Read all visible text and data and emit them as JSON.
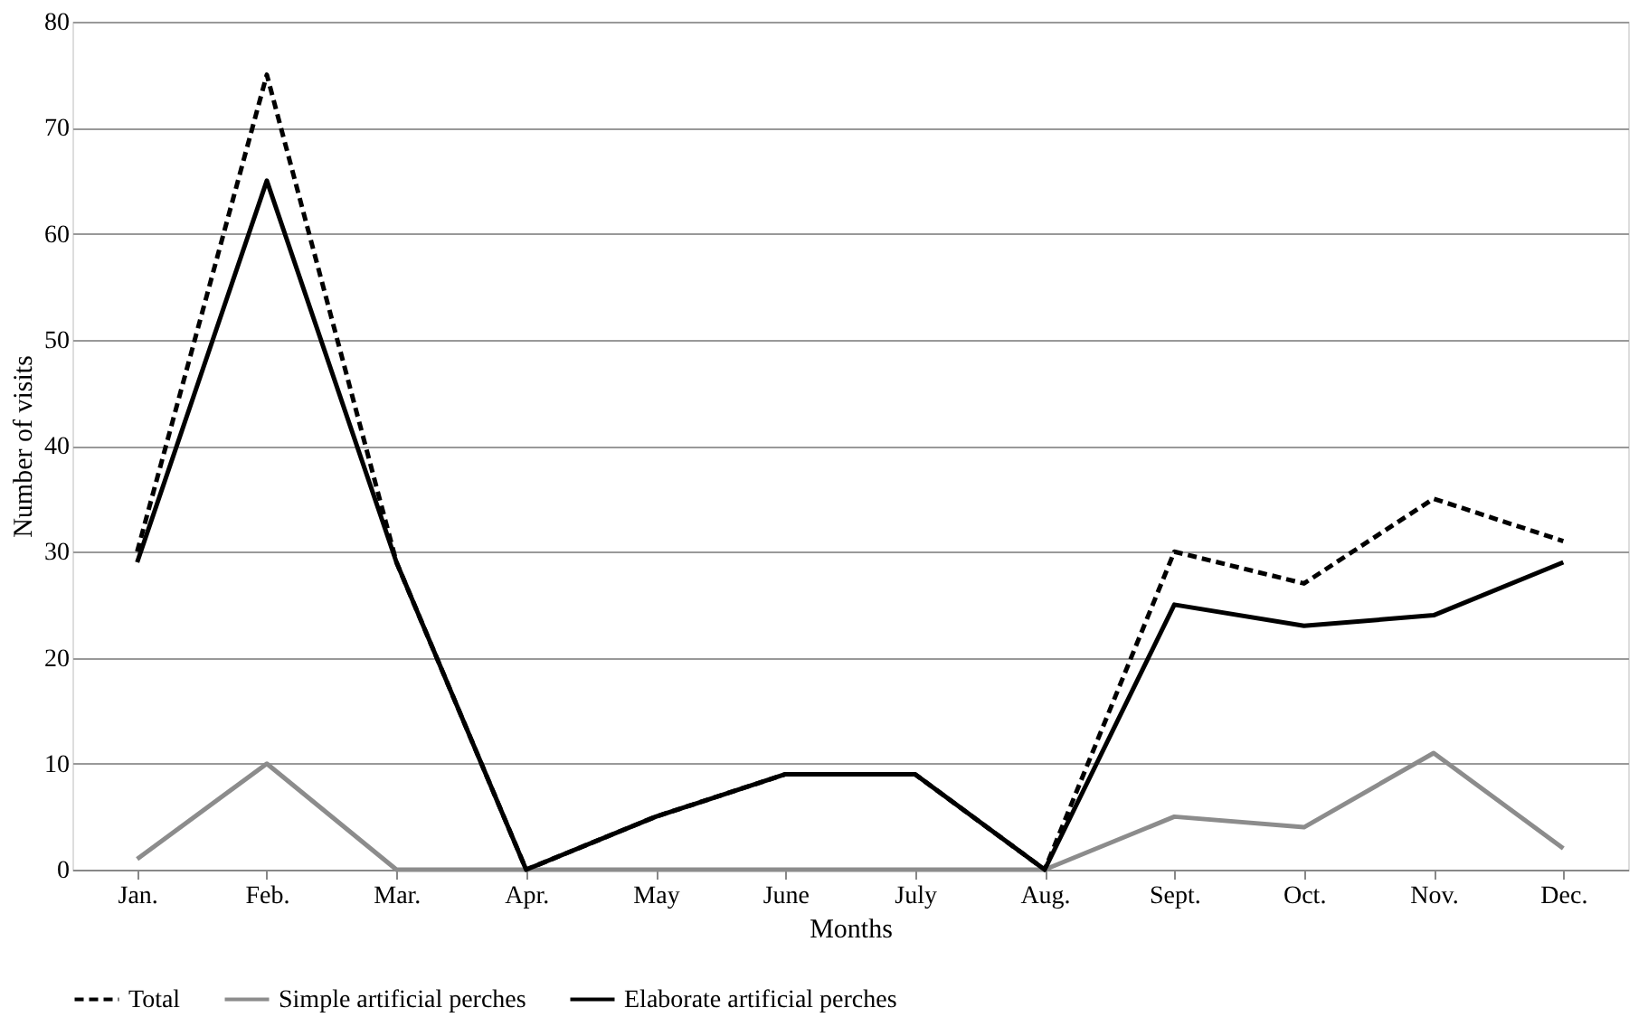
{
  "chart_data": {
    "type": "line",
    "xlabel": "Months",
    "ylabel": "Number of visits",
    "categories": [
      "Jan.",
      "Feb.",
      "Mar.",
      "Apr.",
      "May",
      "June",
      "July",
      "Aug.",
      "Sept.",
      "Oct.",
      "Nov.",
      "Dec."
    ],
    "series": [
      {
        "name": "Total",
        "color": "#000000",
        "line_style": "dashed",
        "values": [
          30,
          75,
          29,
          0,
          5,
          9,
          9,
          0,
          30,
          27,
          35,
          31
        ]
      },
      {
        "name": "Simple artificial perches",
        "color": "#8c8c8c",
        "line_style": "solid",
        "values": [
          1,
          10,
          0,
          0,
          0,
          0,
          0,
          0,
          5,
          4,
          11,
          2
        ]
      },
      {
        "name": "Elaborate artificial perches",
        "color": "#000000",
        "line_style": "solid",
        "values": [
          29,
          65,
          29,
          0,
          5,
          9,
          9,
          0,
          25,
          23,
          24,
          29
        ]
      }
    ],
    "ylim": [
      0,
      80
    ],
    "yticks": [
      0,
      10,
      20,
      30,
      40,
      50,
      60,
      70,
      80
    ],
    "grid": "y",
    "legend": "bottom"
  }
}
